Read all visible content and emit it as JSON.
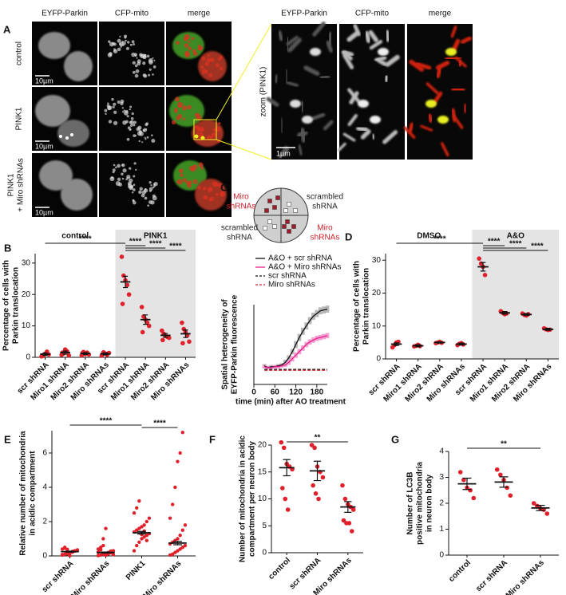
{
  "panel_a": {
    "label": "A",
    "columns": [
      "EYFP-Parkin",
      "CFP-mito",
      "merge"
    ],
    "rows": [
      [
        "control"
      ],
      [
        "PINK1"
      ],
      [
        "PINK1",
        "+ Miro shRNAs"
      ]
    ],
    "scale_bar": "10µm",
    "zoom_columns": [
      "EYFP-Parkin",
      "CFP-mito",
      "merge"
    ],
    "zoom_label": "zoom (PINK1)",
    "zoom_scale_bar": "1µm"
  },
  "panel_c_diagram": {
    "quadrants": [
      [
        "Miro",
        "shRNAs"
      ],
      [
        "scrambled",
        "shRNA"
      ],
      [
        "scrambled",
        "shRNA"
      ],
      [
        "Miro",
        "shRNAs"
      ]
    ],
    "colors": [
      "#d0202a",
      "#222222",
      "#222222",
      "#d0202a"
    ]
  },
  "chart_data": [
    {
      "type": "dotplot",
      "panel": "B",
      "y_label": [
        "Percentage of cells with",
        "Parkin translocation"
      ],
      "ylim": [
        0,
        33
      ],
      "yticks": [
        0,
        10,
        20,
        30
      ],
      "point_color": "#e0202a",
      "groups": [
        {
          "label": "control",
          "shaded": false,
          "categories": [
            "scr shRNA",
            "Miro1 shRNA",
            "Miro2 shRNA",
            "Miro shRNAs"
          ],
          "values": [
            1,
            1.5,
            1.2,
            1.1
          ],
          "errors": [
            0.4,
            0.5,
            0.3,
            0.3
          ],
          "points": [
            [
              0.3,
              0.5,
              1.1,
              1.8,
              0.9,
              0.6
            ],
            [
              0.8,
              1.2,
              2.5,
              1.9,
              0.6,
              1.5
            ],
            [
              0.6,
              1.7,
              1.0,
              1.5,
              0.9,
              1.4
            ],
            [
              0.5,
              1.6,
              1.2,
              0.8,
              1.4,
              1.0
            ]
          ]
        },
        {
          "label": "PINK1",
          "shaded": true,
          "categories": [
            "scr shRNA",
            "Miro1 shRNA",
            "Miro2 shRNA",
            "Miro shRNAs"
          ],
          "values": [
            24,
            12,
            7,
            7.5
          ],
          "errors": [
            1.8,
            1.5,
            0.6,
            1.2
          ],
          "points": [
            [
              32,
              26,
              24.5,
              23,
              20,
              17
            ],
            [
              16,
              13,
              12,
              11,
              10,
              8
            ],
            [
              8.5,
              7.5,
              6.8,
              6.5,
              6.2,
              5.5
            ],
            [
              11,
              9,
              8,
              7,
              5,
              4.5
            ]
          ]
        }
      ],
      "significance": [
        {
          "label": "****",
          "from": 0,
          "to": 4
        },
        {
          "label": "****",
          "from": 4,
          "to": 5
        },
        {
          "label": "****",
          "from": 4,
          "to": 6
        },
        {
          "label": "****",
          "from": 4,
          "to": 7
        }
      ]
    },
    {
      "type": "line",
      "panel": "C",
      "y_label": [
        "Spatial heterogeneity of",
        "EYFP-Parkin fluorescence"
      ],
      "x_label": "time (min) after AO treatment",
      "xlim": [
        0,
        210
      ],
      "xticks": [
        0,
        60,
        120,
        180
      ],
      "ylim": [
        0,
        0.9
      ],
      "legend": "upper left",
      "x": [
        30,
        40,
        50,
        60,
        70,
        80,
        90,
        100,
        110,
        120,
        130,
        140,
        150,
        160,
        170,
        180,
        190,
        200,
        210
      ],
      "series": [
        {
          "name": "A&O + scr shRNA",
          "color": "#111111",
          "band_color": "#b8b8b8",
          "dashed": false,
          "values": [
            0.21,
            0.19,
            0.2,
            0.2,
            0.21,
            0.22,
            0.25,
            0.3,
            0.37,
            0.45,
            0.53,
            0.6,
            0.66,
            0.72,
            0.77,
            0.8,
            0.83,
            0.84,
            0.85
          ],
          "errors": [
            0.02,
            0.02,
            0.02,
            0.02,
            0.02,
            0.02,
            0.03,
            0.03,
            0.03,
            0.04,
            0.04,
            0.04,
            0.04,
            0.04,
            0.04,
            0.04,
            0.04,
            0.04,
            0.04
          ]
        },
        {
          "name": "A&O + Miro shRNAs",
          "color": "#e8208a",
          "band_color": "#f2a0d0",
          "dashed": false,
          "values": [
            0.2,
            0.19,
            0.19,
            0.2,
            0.2,
            0.21,
            0.22,
            0.25,
            0.29,
            0.33,
            0.37,
            0.41,
            0.45,
            0.48,
            0.5,
            0.52,
            0.53,
            0.54,
            0.55
          ],
          "errors": [
            0.02,
            0.02,
            0.02,
            0.02,
            0.02,
            0.02,
            0.02,
            0.03,
            0.03,
            0.03,
            0.03,
            0.03,
            0.03,
            0.03,
            0.03,
            0.03,
            0.03,
            0.03,
            0.03
          ]
        },
        {
          "name": "scr shRNA",
          "color": "#111111",
          "dashed": true,
          "values": [
            0.17,
            0.17,
            0.17,
            0.17,
            0.17,
            0.17,
            0.17,
            0.17,
            0.17,
            0.17,
            0.17,
            0.17,
            0.17,
            0.17,
            0.17,
            0.17,
            0.17,
            0.17,
            0.17
          ]
        },
        {
          "name": "Miro shRNAs",
          "color": "#d0202a",
          "dashed": true,
          "values": [
            0.16,
            0.16,
            0.16,
            0.16,
            0.16,
            0.16,
            0.16,
            0.16,
            0.16,
            0.16,
            0.16,
            0.16,
            0.16,
            0.16,
            0.16,
            0.16,
            0.16,
            0.16,
            0.16
          ]
        }
      ]
    },
    {
      "type": "dotplot",
      "panel": "D",
      "y_label": [
        "Percentage of cells with",
        "Parkin  translocation"
      ],
      "ylim": [
        0,
        32
      ],
      "yticks": [
        0,
        10,
        20,
        30
      ],
      "point_color": "#e0202a",
      "groups": [
        {
          "label": "DMSO",
          "shaded": false,
          "categories": [
            "scr shRNA",
            "Miro1 shRNA",
            "Miro2 shRNA",
            "Miro shRNAs"
          ],
          "values": [
            4.5,
            4,
            5,
            4.5
          ],
          "errors": [
            0.4,
            0.3,
            0.2,
            0.3
          ],
          "points": [
            [
              3.5,
              4.2,
              5.0,
              5.2
            ],
            [
              3.8,
              4.0,
              4.3,
              3.9
            ],
            [
              4.8,
              5.0,
              5.2,
              4.9
            ],
            [
              4.2,
              4.6,
              4.8,
              4.4
            ]
          ]
        },
        {
          "label": "A&O",
          "shaded": true,
          "categories": [
            "scr shRNA",
            "Miro1 shRNA",
            "Miro2 shRNA",
            "Miro shRNAs"
          ],
          "values": [
            28,
            14,
            13.5,
            9
          ],
          "errors": [
            1.3,
            0.4,
            0.3,
            0.3
          ],
          "points": [
            [
              30.5,
              29,
              28,
              25.5
            ],
            [
              14.5,
              14,
              13.6,
              13.8
            ],
            [
              13.8,
              13.4,
              13.2,
              13.6
            ],
            [
              9.3,
              9.0,
              8.8,
              8.9
            ]
          ]
        }
      ],
      "significance": [
        {
          "label": "****",
          "from": 0,
          "to": 4
        },
        {
          "label": "****",
          "from": 4,
          "to": 5
        },
        {
          "label": "****",
          "from": 4,
          "to": 6
        },
        {
          "label": "****",
          "from": 4,
          "to": 7
        }
      ]
    },
    {
      "type": "dotplot",
      "panel": "E",
      "y_label": [
        "Relative number of mitochondria",
        "in acidic compartment"
      ],
      "ylim": [
        0,
        7.3
      ],
      "yticks": [
        0,
        2,
        4,
        6
      ],
      "point_color": "#e0202a",
      "groups": [
        {
          "shaded": false,
          "categories": [
            "scr shRNA",
            "Miro shRNAs",
            "PINK1",
            "PINK1 & Miro shRNAs"
          ],
          "values": [
            0.25,
            0.2,
            1.35,
            0.75
          ],
          "errors": [
            0.03,
            0.03,
            0.08,
            0.1
          ],
          "points": [
            [
              0.05,
              0.1,
              0.15,
              0.2,
              0.25,
              0.3,
              0.35,
              0.4,
              0.45,
              0.12,
              0.18,
              0.22,
              0.28,
              0.33,
              0.08,
              0.5,
              0.38,
              0.02,
              0.26,
              0.3
            ],
            [
              0.02,
              0.05,
              0.1,
              0.15,
              0.2,
              0.25,
              0.3,
              0.4,
              0.5,
              1.0,
              1.6,
              0.12,
              0.18,
              0.08,
              0.22,
              0.35,
              0.6,
              0.04,
              0.14,
              0.28
            ],
            [
              0.3,
              0.6,
              0.8,
              1.0,
              1.1,
              1.2,
              1.3,
              1.4,
              1.5,
              1.6,
              1.7,
              1.8,
              2.0,
              2.2,
              2.5,
              2.8,
              3.2,
              1.25,
              1.45,
              0.9
            ],
            [
              0.05,
              0.1,
              0.2,
              0.3,
              0.4,
              0.5,
              0.6,
              0.7,
              0.8,
              0.9,
              1.0,
              1.2,
              1.5,
              1.8,
              2.2,
              3.0,
              4.0,
              5.5,
              6.0,
              7.2
            ]
          ]
        }
      ],
      "significance": [
        {
          "label": "****",
          "from": 0,
          "to": 2
        },
        {
          "label": "****",
          "from": 2,
          "to": 3
        }
      ]
    },
    {
      "type": "dotplot",
      "panel": "F",
      "y_label": [
        "Number of mitochondria in acidic",
        "compartment per neuron body"
      ],
      "ylim": [
        0,
        20
      ],
      "yticks": [
        0,
        5,
        10,
        15,
        20
      ],
      "point_color": "#e0202a",
      "groups": [
        {
          "shaded": false,
          "categories": [
            "control",
            "scr shRNA",
            "Miro shRNAs"
          ],
          "values": [
            15.8,
            15.2,
            8.5
          ],
          "errors": [
            1.5,
            1.8,
            1.0
          ],
          "points": [
            [
              20.5,
              19.5,
              16.5,
              16,
              15.5,
              12,
              10,
              8
            ],
            [
              20,
              19.5,
              16,
              15,
              14,
              12.5,
              11,
              10
            ],
            [
              12.5,
              10,
              9,
              8.5,
              8,
              6,
              5.5,
              5.5,
              4
            ]
          ]
        }
      ],
      "significance": [
        {
          "label": "**",
          "from": 0,
          "to": 2
        }
      ]
    },
    {
      "type": "dotplot",
      "panel": "G",
      "y_label": [
        "Number of LC3B",
        "positive mitochondria",
        "in neuron body"
      ],
      "ylim": [
        0,
        4
      ],
      "yticks": [
        0,
        1,
        2,
        3,
        4
      ],
      "point_color": "#e0202a",
      "groups": [
        {
          "shaded": false,
          "categories": [
            "control",
            "scr shRNA",
            "Miro shRNAs"
          ],
          "values": [
            2.75,
            2.82,
            1.82
          ],
          "errors": [
            0.22,
            0.2,
            0.1
          ],
          "points": [
            [
              3.2,
              2.9,
              2.6,
              2.5,
              2.2
            ],
            [
              3.3,
              3.1,
              2.9,
              2.6,
              2.3
            ],
            [
              2.0,
              1.9,
              1.8,
              1.75,
              1.6
            ]
          ]
        }
      ],
      "significance": [
        {
          "label": "**",
          "from": 0,
          "to": 2
        }
      ]
    }
  ]
}
